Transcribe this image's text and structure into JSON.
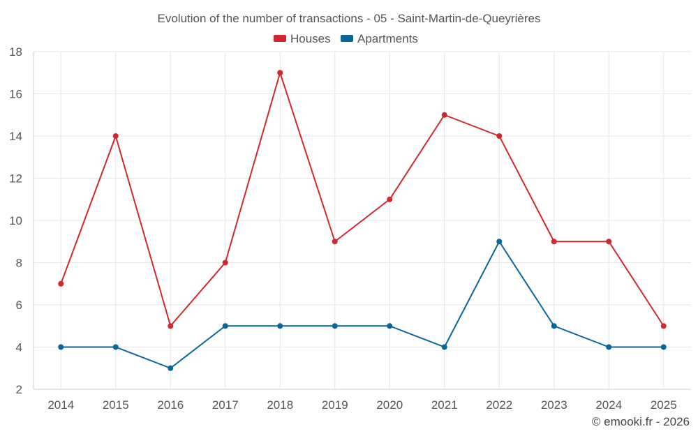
{
  "chart_data": {
    "type": "line",
    "title": "Evolution of the number of transactions - 05 - Saint-Martin-de-Queyrières",
    "categories": [
      "2014",
      "2015",
      "2016",
      "2017",
      "2018",
      "2019",
      "2020",
      "2021",
      "2022",
      "2023",
      "2024",
      "2025"
    ],
    "series": [
      {
        "name": "Houses",
        "color": "#d0282e",
        "values": [
          7,
          14,
          5,
          8,
          17,
          9,
          11,
          15,
          14,
          9,
          9,
          5
        ]
      },
      {
        "name": "Apartments",
        "color": "#0a6699",
        "values": [
          4,
          4,
          3,
          5,
          5,
          5,
          5,
          4,
          9,
          5,
          4,
          4
        ]
      }
    ],
    "ylim": [
      2,
      18
    ],
    "yticks": [
      2,
      4,
      6,
      8,
      10,
      12,
      14,
      16,
      18
    ],
    "grid": true,
    "legend_position": "top-center",
    "xlabel": "",
    "ylabel": ""
  },
  "credit": "© emooki.fr - 2026"
}
